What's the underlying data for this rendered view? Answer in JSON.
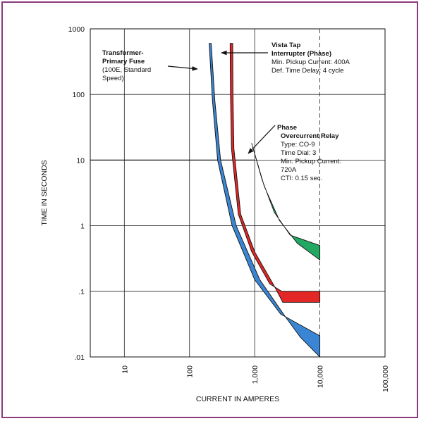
{
  "chart_data": {
    "type": "line",
    "title": "",
    "xlabel": "CURRENT IN AMPERES",
    "ylabel": "TIME IN SECONDS",
    "xscale": "log",
    "yscale": "log",
    "xlim": [
      3,
      100000
    ],
    "ylim": [
      0.01,
      1000
    ],
    "grid": true,
    "x_ticks": [
      {
        "value": 10,
        "label": "10"
      },
      {
        "value": 100,
        "label": "100"
      },
      {
        "value": 1000,
        "label": "1,000"
      },
      {
        "value": 10000,
        "label": "10,000"
      },
      {
        "value": 100000,
        "label": "100,000"
      }
    ],
    "y_ticks": [
      {
        "value": 1000,
        "label": "1000"
      },
      {
        "value": 100,
        "label": "100"
      },
      {
        "value": 10,
        "label": "10"
      },
      {
        "value": 1,
        "label": "1"
      },
      {
        "value": 0.1,
        "label": ".1"
      },
      {
        "value": 0.01,
        "label": ".01"
      }
    ],
    "reference_lines": [
      {
        "orientation": "vertical",
        "x": 10000,
        "style": "dashed"
      },
      {
        "orientation": "horizontal",
        "y": 10,
        "x_range": [
          3,
          1000
        ]
      }
    ],
    "series": [
      {
        "color": "#3a86d4",
        "upper": [
          [
            200,
            600
          ],
          [
            225,
            80
          ],
          [
            270,
            10
          ],
          [
            450,
            1
          ],
          [
            1000,
            0.15
          ],
          [
            2500,
            0.045
          ],
          [
            10000,
            0.021
          ]
        ],
        "lower": [
          [
            215,
            600
          ],
          [
            245,
            80
          ],
          [
            300,
            10
          ],
          [
            520,
            1
          ],
          [
            1200,
            0.15
          ],
          [
            3000,
            0.04
          ],
          [
            5000,
            0.02
          ],
          [
            10000,
            0.01
          ]
        ]
      },
      {
        "color": "#e32626",
        "upper": [
          [
            420,
            600
          ],
          [
            425,
            100
          ],
          [
            440,
            15
          ],
          [
            560,
            1.5
          ],
          [
            900,
            0.4
          ],
          [
            1700,
            0.13
          ],
          [
            2600,
            0.1
          ],
          [
            10000,
            0.1
          ]
        ],
        "lower": [
          [
            460,
            600
          ],
          [
            465,
            100
          ],
          [
            480,
            15
          ],
          [
            610,
            1.5
          ],
          [
            1000,
            0.4
          ],
          [
            2000,
            0.12
          ],
          [
            2700,
            0.068
          ],
          [
            10000,
            0.068
          ]
        ]
      },
      {
        "color": "#22a862",
        "upper": [
          [
            900,
            18
          ],
          [
            1300,
            5
          ],
          [
            2000,
            1.6
          ],
          [
            3500,
            0.72
          ],
          [
            10000,
            0.5
          ]
        ],
        "lower": [
          [
            900,
            18
          ],
          [
            1400,
            4
          ],
          [
            2400,
            1.2
          ],
          [
            4500,
            0.54
          ],
          [
            10000,
            0.3
          ]
        ]
      }
    ],
    "annotations": [
      {
        "lines": [
          {
            "text": "Transformer-",
            "bold": true
          },
          {
            "text": "Primary Fuse",
            "bold": true
          },
          {
            "text": "(100E, Standard",
            "bold": false
          },
          {
            "text": "Speed)",
            "bold": false
          }
        ]
      },
      {
        "lines": [
          {
            "text": "Vista Tap",
            "bold": true
          },
          {
            "text": "Interrupter (Phase)",
            "bold": true
          },
          {
            "text": "Min. Pickup Current: 400A",
            "bold": false
          },
          {
            "text": "Def. Time Delay: 4 cycle",
            "bold": false
          }
        ]
      },
      {
        "lines": [
          {
            "text": "Phase",
            "bold": true
          },
          {
            "text": "Overcurrent Relay",
            "bold": true
          },
          {
            "text": "Type: CO-9",
            "bold": false
          },
          {
            "text": "Time Dial: 3",
            "bold": false
          },
          {
            "text": "Min. Pickup Current:",
            "bold": false
          },
          {
            "text": "720A",
            "bold": false
          },
          {
            "text": "CTI: 0.15 sec.",
            "bold": false
          }
        ]
      }
    ]
  }
}
